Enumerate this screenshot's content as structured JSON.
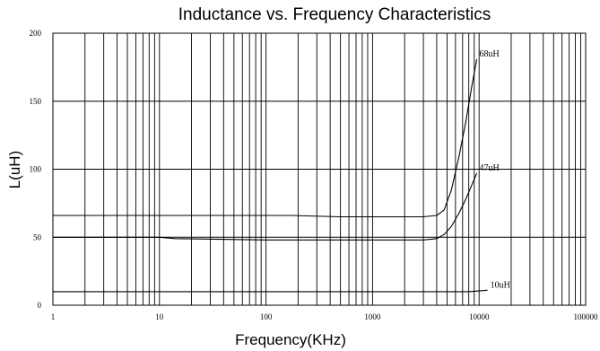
{
  "chart_data": {
    "type": "line",
    "title": "Inductance vs. Frequency Characteristics",
    "xlabel": "Frequency(KHz)",
    "ylabel": "L(uH)",
    "x_scale": "log",
    "xlim": [
      1,
      100000
    ],
    "ylim": [
      0,
      200
    ],
    "x_ticks": [
      "1",
      "10",
      "100",
      "1000",
      "10000",
      "100000"
    ],
    "y_ticks": [
      "0",
      "50",
      "100",
      "150",
      "200"
    ],
    "grid": true,
    "series": [
      {
        "name": "68uH",
        "x": [
          1,
          10,
          100,
          170,
          500,
          1000,
          3000,
          4000,
          4700,
          5500,
          6500,
          7500,
          8500,
          9500
        ],
        "y": [
          66,
          66,
          66,
          66,
          65,
          65,
          65,
          66,
          70,
          85,
          110,
          135,
          160,
          181
        ]
      },
      {
        "name": "47uH",
        "x": [
          1,
          10,
          14,
          100,
          1000,
          3000,
          4000,
          4700,
          5500,
          6500,
          7500,
          8500,
          9500
        ],
        "y": [
          50,
          50,
          49,
          48,
          48,
          48,
          49,
          52,
          58,
          68,
          78,
          88,
          97
        ]
      },
      {
        "name": "10uH",
        "x": [
          1,
          1000,
          3000,
          5000,
          8000,
          12000
        ],
        "y": [
          10,
          10,
          10,
          10,
          10,
          11
        ]
      }
    ]
  }
}
